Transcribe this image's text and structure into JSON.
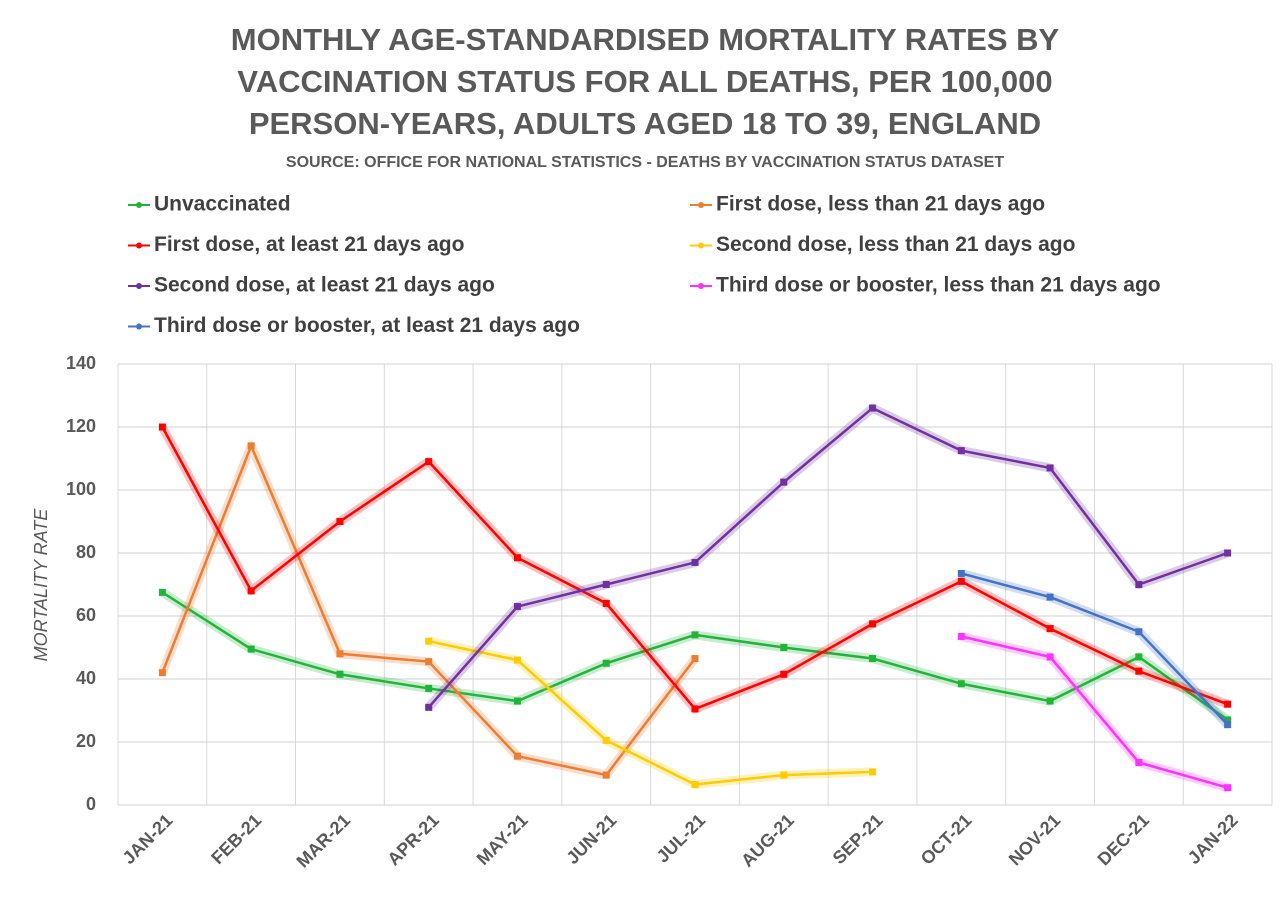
{
  "chart_data": {
    "type": "line",
    "title": [
      "MONTHLY AGE-STANDARDISED MORTALITY RATES BY",
      "VACCINATION STATUS FOR ALL DEATHS, PER 100,000",
      "PERSON-YEARS, ADULTS AGED 18 TO 39, ENGLAND"
    ],
    "subtitle": "SOURCE: OFFICE FOR NATIONAL STATISTICS - DEATHS BY VACCINATION STATUS DATASET",
    "y_label": "MORTALITY RATE",
    "categories": [
      "JAN-21",
      "FEB-21",
      "MAR-21",
      "APR-21",
      "MAY-21",
      "JUN-21",
      "JUL-21",
      "AUG-21",
      "SEP-21",
      "OCT-21",
      "NOV-21",
      "DEC-21",
      "JAN-22"
    ],
    "series": [
      {
        "name": "Unvaccinated",
        "color": "#22b33a",
        "values": [
          67.5,
          49.5,
          41.5,
          37,
          33,
          45,
          54,
          50,
          46.5,
          38.5,
          33,
          47,
          27
        ]
      },
      {
        "name": "First dose, less than 21 days ago",
        "color": "#ed7d31",
        "values": [
          42,
          114,
          48,
          45.5,
          15.5,
          9.5,
          46.5,
          null,
          null,
          null,
          null,
          null,
          null
        ]
      },
      {
        "name": "First dose, at least 21 days ago",
        "color": "#ff0000",
        "values": [
          120,
          68,
          90,
          109,
          78.5,
          64,
          30.5,
          41.5,
          57.5,
          71,
          56,
          42.5,
          32
        ]
      },
      {
        "name": "Second dose, less than 21 days ago",
        "color": "#ffcc00",
        "values": [
          null,
          null,
          null,
          52,
          46,
          20.5,
          6.5,
          9.5,
          10.5,
          null,
          null,
          null,
          null
        ]
      },
      {
        "name": "Second dose, at least 21 days ago",
        "color": "#7030a0",
        "values": [
          null,
          null,
          null,
          31,
          63,
          70,
          77,
          102.5,
          126,
          112.5,
          107,
          70,
          80
        ]
      },
      {
        "name": "Third dose or booster, less than 21 days ago",
        "color": "#ff33ff",
        "values": [
          null,
          null,
          null,
          null,
          null,
          null,
          null,
          null,
          null,
          53.5,
          47,
          13.5,
          5.5
        ]
      },
      {
        "name": "Third dose or booster, at least 21 days ago",
        "color": "#4472c4",
        "values": [
          null,
          null,
          null,
          null,
          null,
          null,
          null,
          null,
          null,
          73.5,
          66,
          55,
          25.5
        ]
      }
    ],
    "ylim": [
      0,
      140
    ],
    "yticks": [
      0,
      20,
      40,
      60,
      80,
      100,
      120,
      140
    ],
    "grid": true,
    "legend": "top"
  }
}
